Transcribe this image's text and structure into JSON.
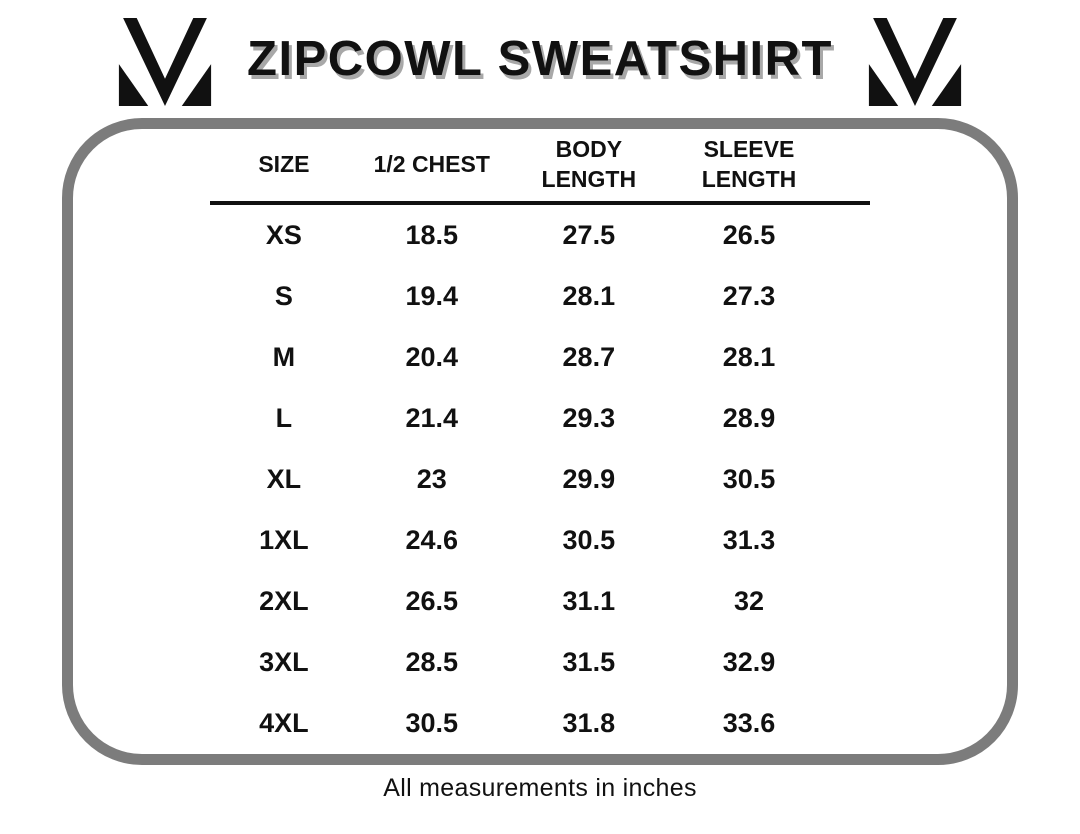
{
  "header": {
    "title": "ZIPCOWL SWEATSHIRT",
    "logo_icon": "m-brand-mark"
  },
  "table": {
    "columns": [
      {
        "line1": "SIZE",
        "line2": ""
      },
      {
        "line1": "1/2 CHEST",
        "line2": ""
      },
      {
        "line1": "BODY",
        "line2": "LENGTH"
      },
      {
        "line1": "SLEEVE",
        "line2": "LENGTH"
      }
    ],
    "rows": [
      {
        "size": "XS",
        "half_chest": "18.5",
        "body_length": "27.5",
        "sleeve_length": "26.5"
      },
      {
        "size": "S",
        "half_chest": "19.4",
        "body_length": "28.1",
        "sleeve_length": "27.3"
      },
      {
        "size": "M",
        "half_chest": "20.4",
        "body_length": "28.7",
        "sleeve_length": "28.1"
      },
      {
        "size": "L",
        "half_chest": "21.4",
        "body_length": "29.3",
        "sleeve_length": "28.9"
      },
      {
        "size": "XL",
        "half_chest": "23",
        "body_length": "29.9",
        "sleeve_length": "30.5"
      },
      {
        "size": "1XL",
        "half_chest": "24.6",
        "body_length": "30.5",
        "sleeve_length": "31.3"
      },
      {
        "size": "2XL",
        "half_chest": "26.5",
        "body_length": "31.1",
        "sleeve_length": "32"
      },
      {
        "size": "3XL",
        "half_chest": "28.5",
        "body_length": "31.5",
        "sleeve_length": "32.9"
      },
      {
        "size": "4XL",
        "half_chest": "30.5",
        "body_length": "31.8",
        "sleeve_length": "33.6"
      }
    ]
  },
  "footer": {
    "note": "All measurements in inches"
  },
  "colors": {
    "text": "#111111",
    "panel_border": "#7c7c7c",
    "title_shadow": "#a8a8a8"
  },
  "chart_data": {
    "type": "table",
    "title": "ZIPCOWL SWEATSHIRT",
    "columns": [
      "SIZE",
      "1/2 CHEST",
      "BODY LENGTH",
      "SLEEVE LENGTH"
    ],
    "rows": [
      [
        "XS",
        18.5,
        27.5,
        26.5
      ],
      [
        "S",
        19.4,
        28.1,
        27.3
      ],
      [
        "M",
        20.4,
        28.7,
        28.1
      ],
      [
        "L",
        21.4,
        29.3,
        28.9
      ],
      [
        "XL",
        23,
        29.9,
        30.5
      ],
      [
        "1XL",
        24.6,
        30.5,
        31.3
      ],
      [
        "2XL",
        26.5,
        31.1,
        32
      ],
      [
        "3XL",
        28.5,
        31.5,
        32.9
      ],
      [
        "4XL",
        30.5,
        31.8,
        33.6
      ]
    ],
    "units": "inches",
    "note": "All measurements in inches"
  }
}
